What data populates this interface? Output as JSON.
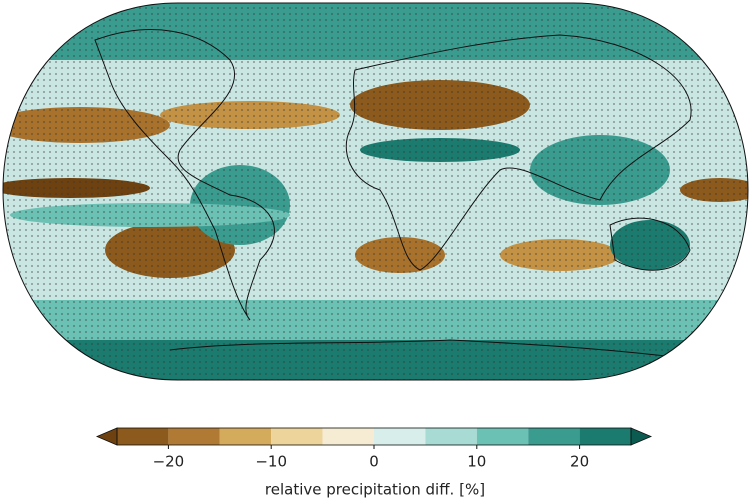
{
  "colorbar": {
    "label": "relative precipitation diff. [%]",
    "bounds": [
      -25,
      -20,
      -15,
      -10,
      -5,
      0,
      5,
      10,
      15,
      20,
      25
    ],
    "colors": [
      "#8b5a1c",
      "#b07a34",
      "#d4aa5c",
      "#ecd49a",
      "#f6ecd3",
      "#d7eeeb",
      "#a7dbd3",
      "#6cc1b5",
      "#3a9c8f",
      "#1b7b6f"
    ],
    "extend_colors": [
      "#6e4210",
      "#0c5b50"
    ],
    "ticks": [
      {
        "value": -20,
        "label": "−20"
      },
      {
        "value": -10,
        "label": "−10"
      },
      0,
      10,
      20
    ]
  }
}
